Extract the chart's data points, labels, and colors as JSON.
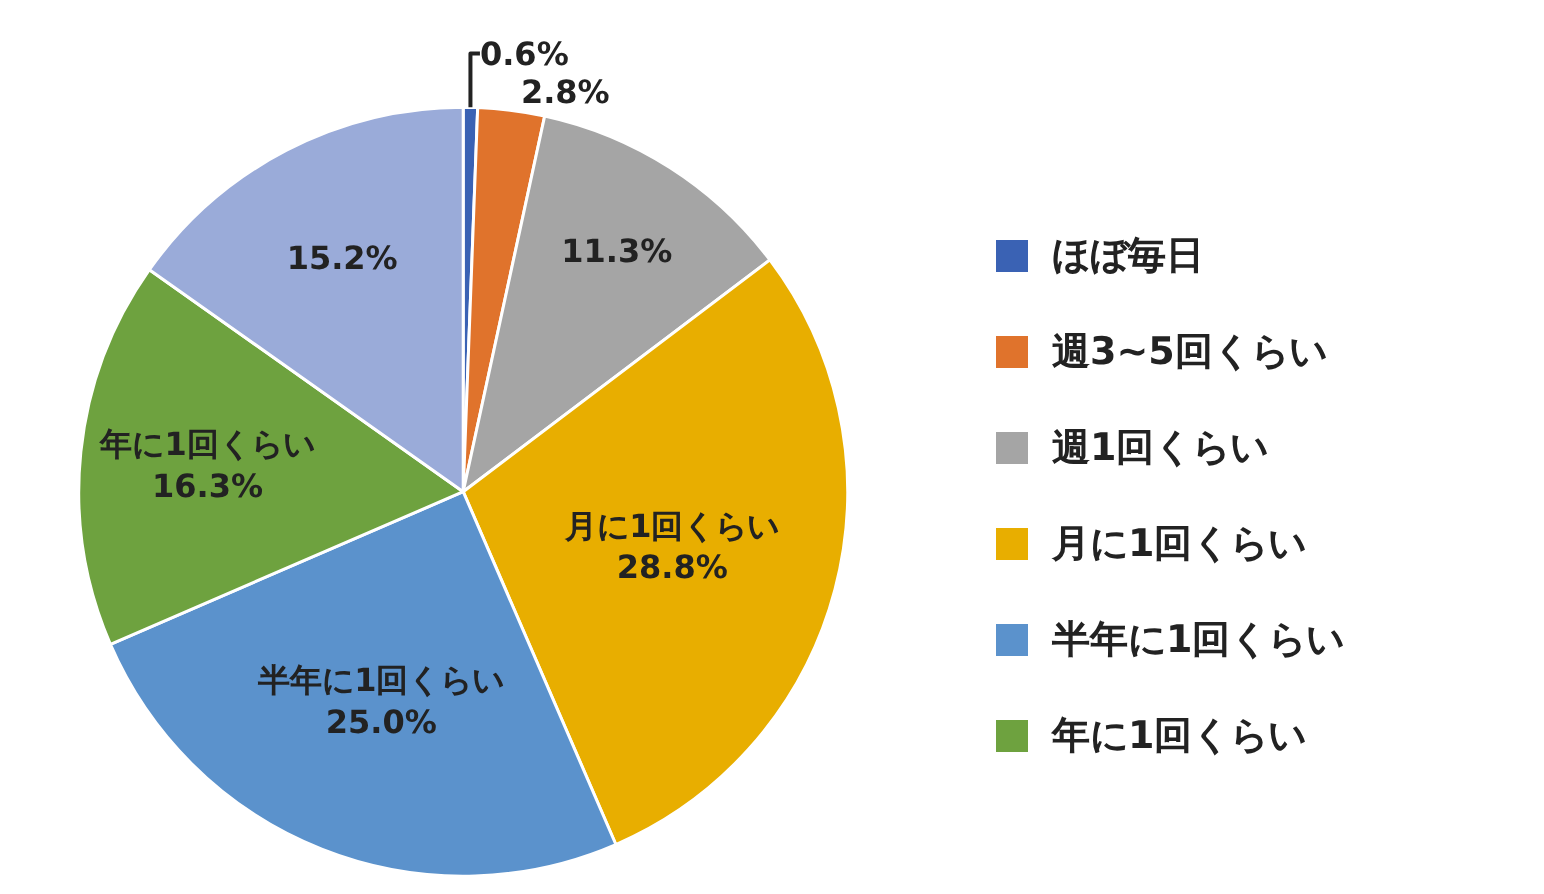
{
  "chart_data": {
    "type": "pie",
    "categories": [
      "ほぼ毎日",
      "週3~5回くらい",
      "週1回くらい",
      "月に1回くらい",
      "半年に1回くらい",
      "年に1回くらい",
      null
    ],
    "values": [
      0.6,
      2.8,
      11.3,
      28.8,
      25.0,
      16.3,
      15.2
    ],
    "colors": [
      "#3a62b4",
      "#e0732c",
      "#a5a5a5",
      "#e8ae00",
      "#5b92cc",
      "#6ea23f",
      "#9aabd9"
    ],
    "value_labels": [
      "0.6%",
      "2.8%",
      "11.3%",
      "月に1回くらい\n28.8%",
      "半年に1回くらい\n25.0%",
      "年に1回くらい\n16.3%",
      "15.2%"
    ],
    "legend": "right"
  }
}
